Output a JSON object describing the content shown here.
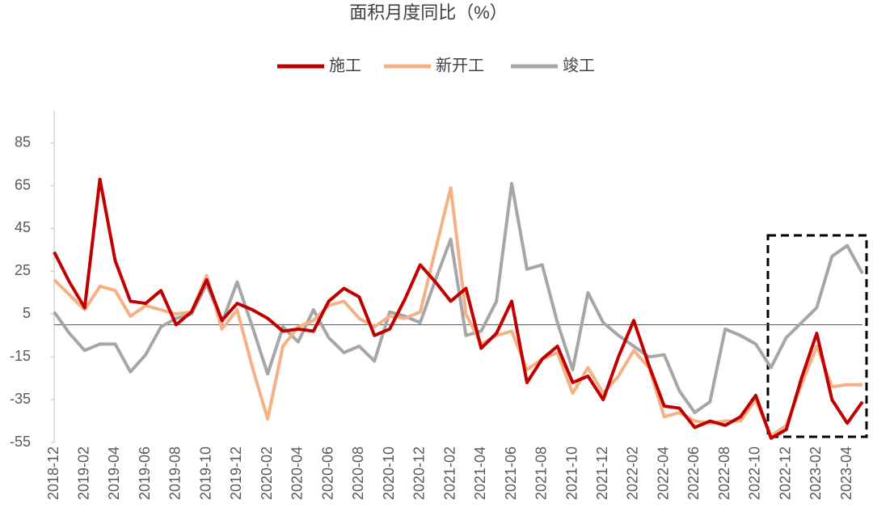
{
  "chart_data": {
    "type": "line",
    "title": "面积月度同比（%）",
    "categories": [
      "2018-12",
      null,
      "2019-02",
      null,
      "2019-04",
      null,
      "2019-06",
      null,
      "2019-08",
      null,
      "2019-10",
      null,
      "2019-12",
      null,
      "2020-02",
      null,
      "2020-04",
      null,
      "2020-06",
      null,
      "2020-08",
      null,
      "2020-10",
      null,
      "2020-12",
      null,
      "2021-02",
      null,
      "2021-04",
      null,
      "2021-06",
      null,
      "2021-08",
      null,
      "2021-10",
      null,
      "2021-12",
      null,
      "2022-02",
      null,
      "2022-04",
      null,
      "2022-06",
      null,
      "2022-08",
      null,
      "2022-10",
      null,
      "2022-12",
      null,
      "2023-02",
      null,
      "2023-04",
      null
    ],
    "series": [
      {
        "name": "施工",
        "color": "#c00000",
        "values": [
          34,
          20,
          8,
          68,
          30,
          11,
          10,
          16,
          0,
          6,
          21,
          2,
          10,
          7,
          3,
          -3,
          -2,
          -3,
          11,
          17,
          13,
          -5,
          -2,
          12,
          28,
          20,
          11,
          17,
          -11,
          -4,
          11,
          -27,
          -16,
          -10,
          -27,
          -24,
          -35,
          -15,
          2,
          -19,
          -38,
          -39,
          -48,
          -45,
          -47,
          -43,
          -33,
          -53,
          -49,
          -25,
          -4,
          -35,
          -46,
          -36
        ]
      },
      {
        "name": "新开工",
        "color": "#f4b183",
        "values": [
          21,
          14,
          7,
          18,
          16,
          4,
          9,
          7,
          5,
          6,
          23,
          -2,
          7,
          -20,
          -44,
          -10,
          -1,
          2,
          9,
          11,
          3,
          -1,
          4,
          3,
          6,
          35,
          64,
          5,
          -9,
          -5,
          -3,
          -21,
          -16,
          -13,
          -32,
          -20,
          -32,
          -24,
          -12,
          -20,
          -43,
          -41,
          -45,
          -46,
          -45,
          -45,
          -35,
          -52,
          -47,
          -28,
          -10,
          -29,
          -28,
          -28
        ]
      },
      {
        "name": "竣工",
        "color": "#a6a6a6",
        "values": [
          6,
          -4,
          -12,
          -9,
          -9,
          -22,
          -14,
          -1,
          3,
          5,
          19,
          1,
          20,
          -1,
          -23,
          -1,
          -8,
          7,
          -6,
          -13,
          -10,
          -17,
          6,
          4,
          1,
          21,
          40,
          -5,
          -3,
          11,
          66,
          26,
          28,
          1,
          -21,
          15,
          1,
          -5,
          -10,
          -15,
          -14,
          -31,
          -41,
          -36,
          -2,
          -5,
          -9,
          -20,
          -6,
          1,
          8,
          32,
          37,
          24
        ]
      }
    ],
    "ylim": [
      -55,
      100
    ],
    "yticks": [
      -55,
      -35,
      -15,
      5,
      25,
      45,
      65,
      85
    ],
    "legend": "top"
  }
}
